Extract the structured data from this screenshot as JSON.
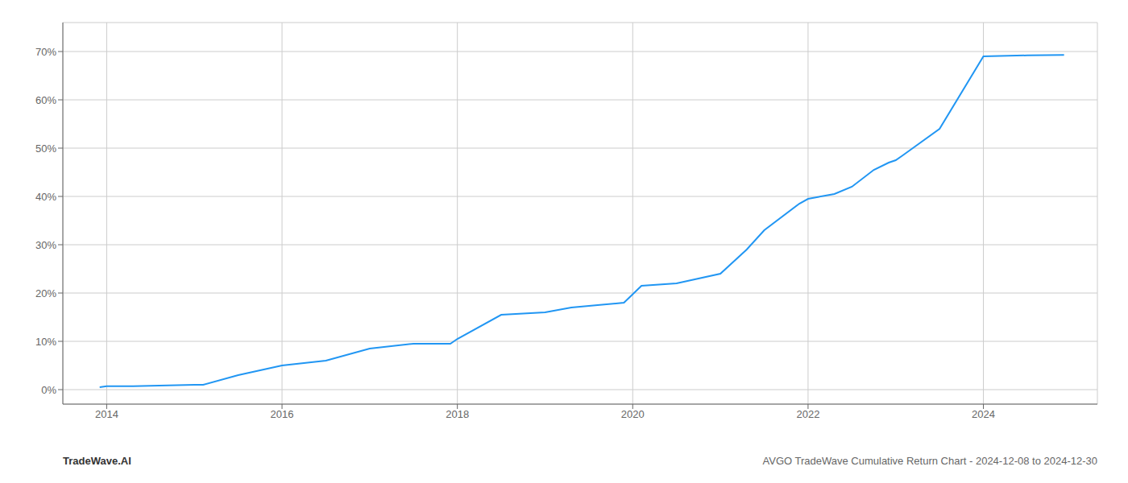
{
  "chart_data": {
    "type": "line",
    "annotations": [
      "TradeWave.AI",
      "AVGO TradeWave Cumulative Return Chart - 2024-12-08 to 2024-12-30"
    ],
    "x": [
      2013.92,
      2014.0,
      2014.3,
      2015.0,
      2015.1,
      2015.5,
      2016.0,
      2016.5,
      2017.0,
      2017.5,
      2017.92,
      2018.0,
      2018.5,
      2019.0,
      2019.3,
      2019.6,
      2019.9,
      2020.1,
      2020.5,
      2021.0,
      2021.3,
      2021.5,
      2021.9,
      2022.0,
      2022.3,
      2022.5,
      2022.75,
      2022.92,
      2023.0,
      2023.08,
      2023.5,
      2024.0,
      2024.5,
      2024.92
    ],
    "values": [
      0.5,
      0.7,
      0.7,
      1.0,
      1.0,
      3.0,
      5.0,
      6.0,
      8.5,
      9.5,
      9.5,
      10.5,
      15.5,
      16.0,
      17.0,
      17.5,
      18.0,
      21.5,
      22.0,
      24.0,
      29.0,
      33.0,
      38.5,
      39.5,
      40.5,
      42.0,
      45.5,
      47.0,
      47.5,
      48.5,
      54.0,
      69.0,
      69.2,
      69.3
    ],
    "color": "#2196f3",
    "xlim": [
      2013.5,
      2025.3
    ],
    "ylim": [
      -3,
      76
    ],
    "xticks": [
      2014,
      2016,
      2018,
      2020,
      2022,
      2024
    ],
    "yticks": [
      {
        "value": 0,
        "label": "0%"
      },
      {
        "value": 10,
        "label": "10%"
      },
      {
        "value": 20,
        "label": "20%"
      },
      {
        "value": 30,
        "label": "30%"
      },
      {
        "value": 40,
        "label": "40%"
      },
      {
        "value": 50,
        "label": "50%"
      },
      {
        "value": 60,
        "label": "60%"
      },
      {
        "value": 70,
        "label": "70%"
      }
    ],
    "grid": true
  }
}
